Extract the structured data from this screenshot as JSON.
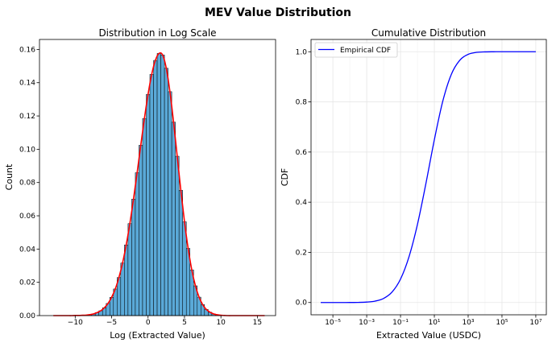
{
  "figure": {
    "suptitle": "MEV Value Distribution"
  },
  "chart_data": [
    {
      "type": "bar",
      "title": "Distribution in Log Scale",
      "xlabel": "Log (Extracted Value)",
      "ylabel": "Count",
      "xlim": [
        -14.9,
        17.5
      ],
      "ylim": [
        0,
        0.166
      ],
      "xticks": [
        -10,
        -5,
        0,
        5,
        10,
        15
      ],
      "xtick_labels": [
        "−10",
        "−5",
        "0",
        "5",
        "10",
        "15"
      ],
      "yticks": [
        0,
        0.02,
        0.04,
        0.06,
        0.08,
        0.1,
        0.12,
        0.14,
        0.16
      ],
      "ytick_labels": [
        "0.00",
        "0.02",
        "0.04",
        "0.06",
        "0.08",
        "0.10",
        "0.12",
        "0.14",
        "0.16"
      ],
      "grid": false,
      "bar_color": "#5aa9d8",
      "bar_edge_color": "#000000",
      "kde_color": "#ff0000",
      "bin_width": 0.5,
      "bin_centers": [
        -13,
        -12.5,
        -12,
        -11.5,
        -11,
        -10.5,
        -10,
        -9.5,
        -9,
        -8.5,
        -8,
        -7.5,
        -7,
        -6.5,
        -6,
        -5.5,
        -5,
        -4.5,
        -4,
        -3.5,
        -3,
        -2.5,
        -2,
        -1.5,
        -1,
        -0.5,
        0,
        0.5,
        1,
        1.5,
        2,
        2.5,
        3,
        3.5,
        4,
        4.5,
        5,
        5.5,
        6,
        6.5,
        7,
        7.5,
        8,
        8.5,
        9,
        9.5,
        10,
        10.5,
        11,
        11.5,
        12,
        12.5,
        13,
        13.5,
        14,
        14.5,
        15,
        15.5,
        16
      ],
      "values": [
        0,
        0,
        0,
        0,
        0,
        0,
        0.0001,
        0.0001,
        0.0002,
        0.0003,
        0.0006,
        0.001,
        0.0018,
        0.0029,
        0.0047,
        0.0073,
        0.011,
        0.016,
        0.0229,
        0.0316,
        0.0425,
        0.0553,
        0.07,
        0.0859,
        0.1024,
        0.1185,
        0.133,
        0.145,
        0.1534,
        0.1576,
        0.1567,
        0.1487,
        0.1346,
        0.1163,
        0.0958,
        0.0753,
        0.0564,
        0.0404,
        0.0275,
        0.0179,
        0.0111,
        0.0066,
        0.0037,
        0.002,
        0.001,
        0.0005,
        0.0002,
        0.0001,
        0,
        0,
        0,
        0,
        0,
        0,
        0,
        0,
        0,
        0,
        0
      ]
    },
    {
      "type": "line",
      "title": "Cumulative Distribution",
      "xlabel": "Extracted Value (USDC)",
      "ylabel": "CDF",
      "xscale": "log",
      "xlim": [
        5.1e-07,
        42000000.0
      ],
      "ylim": [
        -0.049,
        1.049
      ],
      "xticks": [
        1e-05,
        0.001,
        0.1,
        10.0,
        1000.0,
        100000.0,
        10000000.0
      ],
      "xtick_labels": [
        "10⁻⁵",
        "10⁻³",
        "10⁻¹",
        "10¹",
        "10³",
        "10⁵",
        "10⁷"
      ],
      "yticks": [
        0,
        0.2,
        0.4,
        0.6,
        0.8,
        1.0
      ],
      "ytick_labels": [
        "0.0",
        "0.2",
        "0.4",
        "0.6",
        "0.8",
        "1.0"
      ],
      "grid": true,
      "legend": {
        "position": "top-left",
        "entries": [
          "Empirical CDF"
        ]
      },
      "series": [
        {
          "name": "Empirical CDF",
          "color": "#0000ff",
          "x": [
            1.9e-06,
            3.16e-06,
            1e-05,
            3.16e-05,
            0.0001,
            0.000316,
            0.001,
            0.00316,
            0.01,
            0.0316,
            0.1,
            0.316,
            1,
            3.16,
            10,
            31.6,
            100,
            316,
            1000,
            3162,
            10000.0,
            31600.0,
            100000.0,
            1000000.0,
            10000000.0
          ],
          "y": [
            0,
            0,
            0,
            2e-05,
            0.0001,
            0.0004,
            0.0017,
            0.0057,
            0.0163,
            0.0418,
            0.0935,
            0.182,
            0.311,
            0.474,
            0.649,
            0.803,
            0.909,
            0.9656,
            0.9896,
            0.9975,
            0.9995,
            0.9999,
            1.0,
            1.0,
            1.0
          ]
        }
      ]
    }
  ]
}
